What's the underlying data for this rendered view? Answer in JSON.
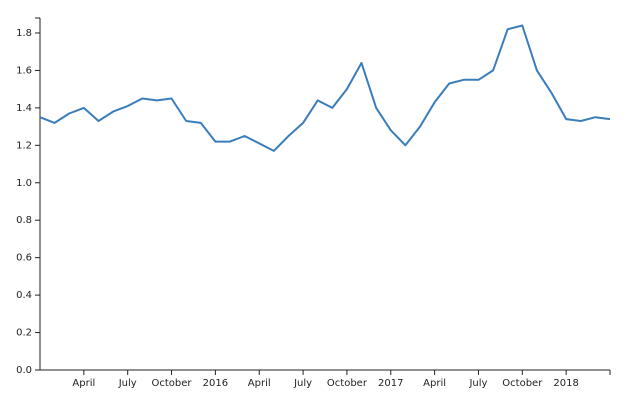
{
  "chart_data": {
    "type": "line",
    "x": [
      "2015-01",
      "2015-02",
      "2015-03",
      "2015-04",
      "2015-05",
      "2015-06",
      "2015-07",
      "2015-08",
      "2015-09",
      "2015-10",
      "2015-11",
      "2015-12",
      "2016-01",
      "2016-02",
      "2016-03",
      "2016-04",
      "2016-05",
      "2016-06",
      "2016-07",
      "2016-08",
      "2016-09",
      "2016-10",
      "2016-11",
      "2016-12",
      "2017-01",
      "2017-02",
      "2017-03",
      "2017-04",
      "2017-05",
      "2017-06",
      "2017-07",
      "2017-08",
      "2017-09",
      "2017-10",
      "2017-11",
      "2017-12",
      "2018-01",
      "2018-02",
      "2018-03",
      "2018-04"
    ],
    "values": [
      1.35,
      1.32,
      1.37,
      1.4,
      1.33,
      1.38,
      1.41,
      1.45,
      1.44,
      1.45,
      1.33,
      1.32,
      1.22,
      1.22,
      1.25,
      1.21,
      1.17,
      1.25,
      1.32,
      1.44,
      1.4,
      1.5,
      1.64,
      1.4,
      1.28,
      1.2,
      1.3,
      1.43,
      1.53,
      1.55,
      1.55,
      1.6,
      1.82,
      1.84,
      1.6,
      1.48,
      1.34,
      1.33,
      1.35,
      1.34
    ],
    "color": "#3a7dbb",
    "xlim": [
      "2015-01",
      "2018-04"
    ],
    "xticks": [
      {
        "value": "2015-04",
        "label": "April"
      },
      {
        "value": "2015-07",
        "label": "July"
      },
      {
        "value": "2015-10",
        "label": "October"
      },
      {
        "value": "2016-01",
        "label": "2016"
      },
      {
        "value": "2016-04",
        "label": "April"
      },
      {
        "value": "2016-07",
        "label": "July"
      },
      {
        "value": "2016-10",
        "label": "October"
      },
      {
        "value": "2017-01",
        "label": "2017"
      },
      {
        "value": "2017-04",
        "label": "April"
      },
      {
        "value": "2017-07",
        "label": "July"
      },
      {
        "value": "2017-10",
        "label": "October"
      },
      {
        "value": "2018-01",
        "label": "2018"
      }
    ],
    "ylim": [
      0,
      1.88
    ],
    "yticks": [
      {
        "value": 0,
        "label": "0.0"
      },
      0.2,
      0.4,
      0.6,
      0.8,
      {
        "value": 1,
        "label": "1.0"
      },
      1.2,
      1.4,
      1.6,
      1.8
    ]
  }
}
